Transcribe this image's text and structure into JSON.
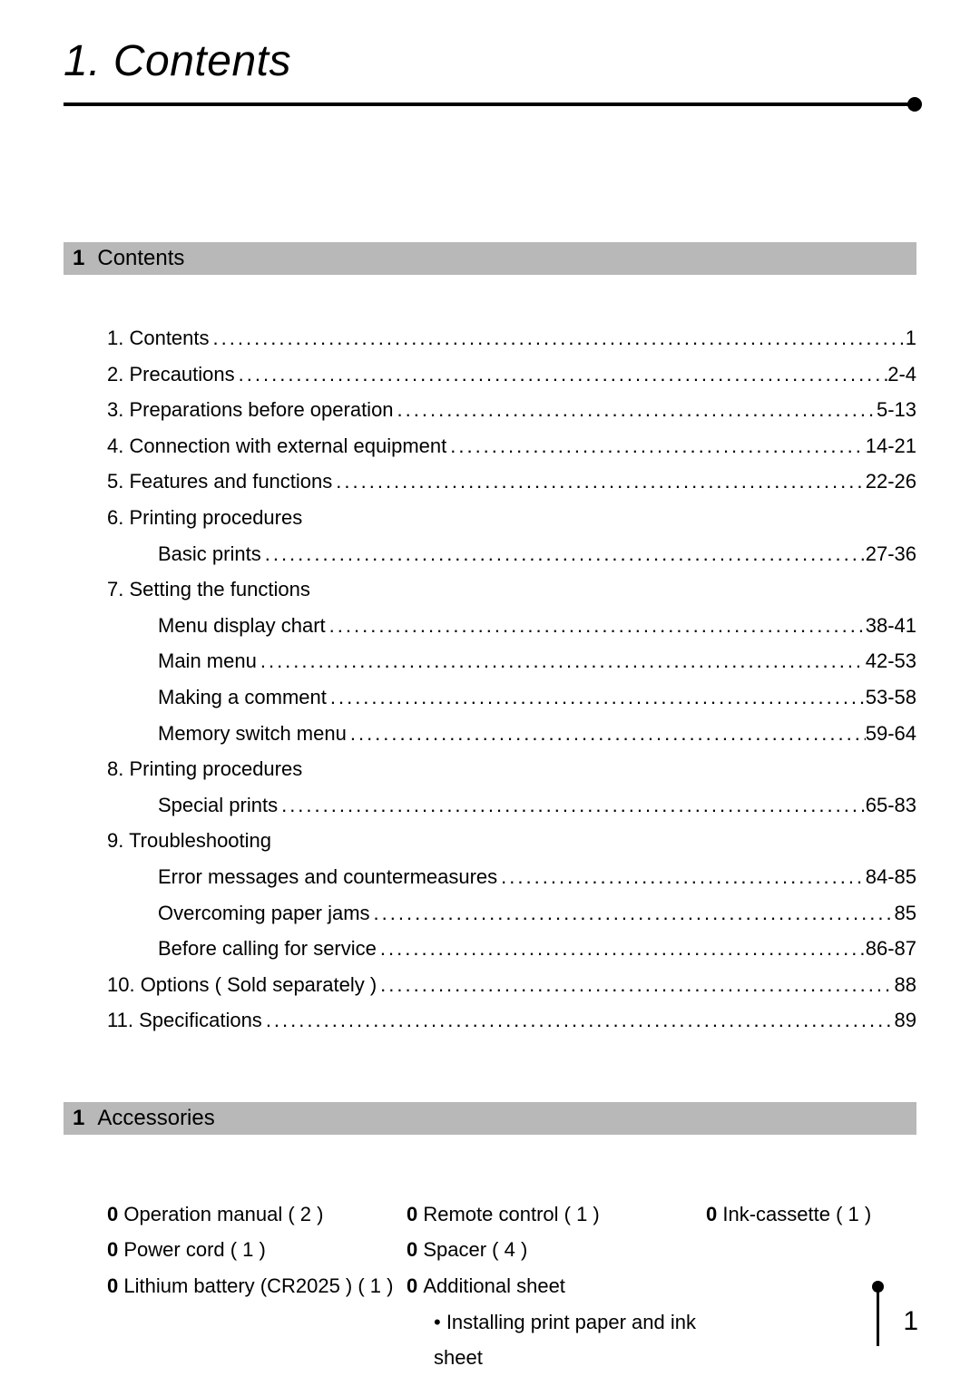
{
  "chapter": {
    "title": "1. Contents"
  },
  "sections": {
    "contents": {
      "num": "1",
      "label": "Contents"
    },
    "accessories": {
      "num": "1",
      "label": "Accessories"
    }
  },
  "toc": [
    {
      "label": "1. Contents",
      "page": "1",
      "indent": 0
    },
    {
      "label": "2. Precautions",
      "page": "2-4",
      "indent": 0
    },
    {
      "label": "3. Preparations before operation",
      "page": "5-13",
      "indent": 0
    },
    {
      "label": "4. Connection with external equipment",
      "page": "14-21",
      "indent": 0
    },
    {
      "label": "5. Features and functions",
      "page": "22-26",
      "indent": 0
    },
    {
      "label": "6. Printing procedures",
      "page": "",
      "indent": 0
    },
    {
      "label": "Basic prints",
      "page": "27-36",
      "indent": 1
    },
    {
      "label": "7. Setting the functions",
      "page": "",
      "indent": 0
    },
    {
      "label": "Menu display chart",
      "page": "38-41",
      "indent": 1
    },
    {
      "label": "Main menu",
      "page": "42-53",
      "indent": 1
    },
    {
      "label": "Making a comment",
      "page": "53-58",
      "indent": 1
    },
    {
      "label": "Memory switch menu",
      "page": "59-64",
      "indent": 1
    },
    {
      "label": "8. Printing procedures",
      "page": "",
      "indent": 0
    },
    {
      "label": "Special prints",
      "page": "65-83",
      "indent": 1
    },
    {
      "label": "9. Troubleshooting",
      "page": "",
      "indent": 0
    },
    {
      "label": "Error messages and countermeasures",
      "page": "84-85",
      "indent": 1
    },
    {
      "label": "Overcoming paper jams",
      "page": "85",
      "indent": 1
    },
    {
      "label": "Before calling for service",
      "page": "86-87",
      "indent": 1
    },
    {
      "label": "10. Options ( Sold separately )",
      "page": "88",
      "indent": 0
    },
    {
      "label": "11. Specifications",
      "page": "89",
      "indent": 0
    }
  ],
  "accessories": {
    "rows": [
      {
        "c1": "Operation manual ( 2 )",
        "c2": "Remote control ( 1 )",
        "c3": "Ink-cassette ( 1 )"
      },
      {
        "c1": "Power cord ( 1 )",
        "c2": "Spacer ( 4 )",
        "c3": ""
      },
      {
        "c1": "Lithium battery (CR2025 ) ( 1 )",
        "c2": "Additional sheet",
        "c3": ""
      }
    ],
    "sub": "• Installing print paper and ink sheet",
    "bullet": "0 "
  },
  "pageNumber": "1",
  "style": {
    "background": "#ffffff",
    "text": "#000000",
    "headerBg": "#b8b8b8",
    "titleFontSize": 48,
    "bodyFontSize": 22,
    "headerFontSize": 24,
    "pageNumFontSize": 30
  }
}
